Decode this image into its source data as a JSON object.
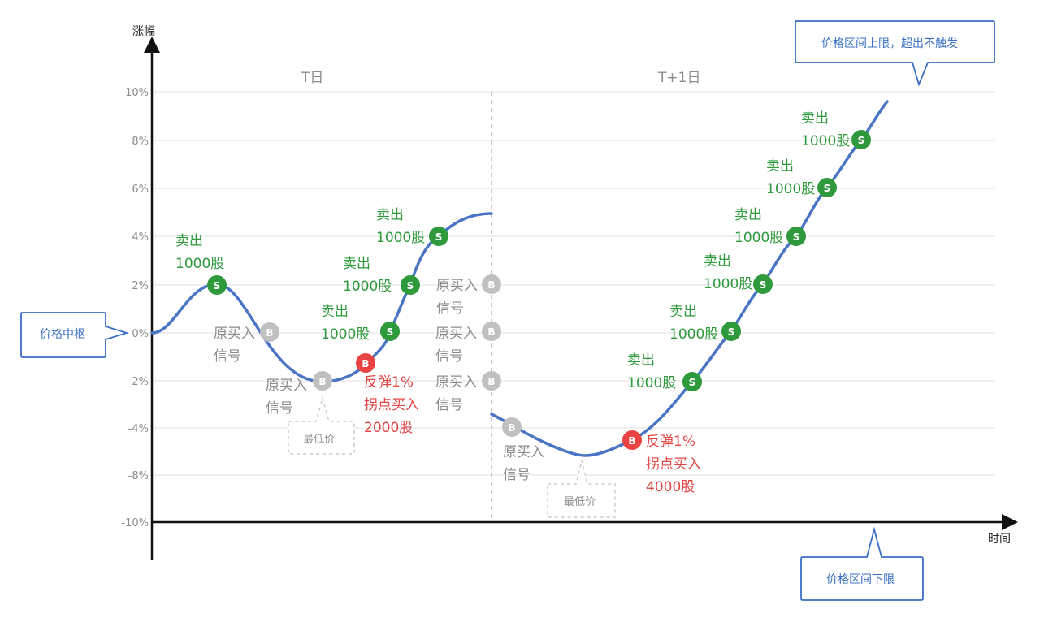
{
  "axes": {
    "y_title": "涨幅",
    "x_title": "时间",
    "y_ticks": [
      "10%",
      "8%",
      "6%",
      "4%",
      "2%",
      "0%",
      "-2%",
      "-4%",
      "-8%",
      "-10%"
    ]
  },
  "days": {
    "t": "T日",
    "t1": "T+1日"
  },
  "callouts": {
    "upper": "价格区间上限，超出不触发",
    "center": "价格中枢",
    "lower": "价格区间下限",
    "low_price": "最低价"
  },
  "markers": {
    "sell_letter": "S",
    "buy_letter": "B"
  },
  "sell_orders": [
    {
      "line1": "卖出",
      "line2": "1000股"
    },
    {
      "line1": "卖出",
      "line2": "1000股"
    },
    {
      "line1": "卖出",
      "line2": "1000股"
    },
    {
      "line1": "卖出",
      "line2": "1000股"
    },
    {
      "line1": "卖出",
      "line2": "1000股"
    },
    {
      "line1": "卖出",
      "line2": "1000股"
    },
    {
      "line1": "卖出",
      "line2": "1000股"
    },
    {
      "line1": "卖出",
      "line2": "1000股"
    },
    {
      "line1": "卖出",
      "line2": "1000股"
    },
    {
      "line1": "卖出",
      "line2": "1000股"
    }
  ],
  "buy_orders": [
    {
      "line1": "反弹1%",
      "line2": "拐点买入",
      "line3": "2000股"
    },
    {
      "line1": "反弹1%",
      "line2": "拐点买入",
      "line3": "4000股"
    }
  ],
  "original_signals": [
    {
      "line1": "原买入",
      "line2": "信号"
    },
    {
      "line1": "原买入",
      "line2": "信号"
    },
    {
      "line1": "原买入",
      "line2": "信号"
    },
    {
      "line1": "原买入",
      "line2": "信号"
    },
    {
      "line1": "原买入",
      "line2": "信号"
    },
    {
      "line1": "原买入",
      "line2": "信号"
    }
  ],
  "colors": {
    "curve": "#4a74c4",
    "sell": "#2e9a3c",
    "buy": "#e94343",
    "signal": "#c0c0c0",
    "callout_border": "#3a6fc4"
  }
}
